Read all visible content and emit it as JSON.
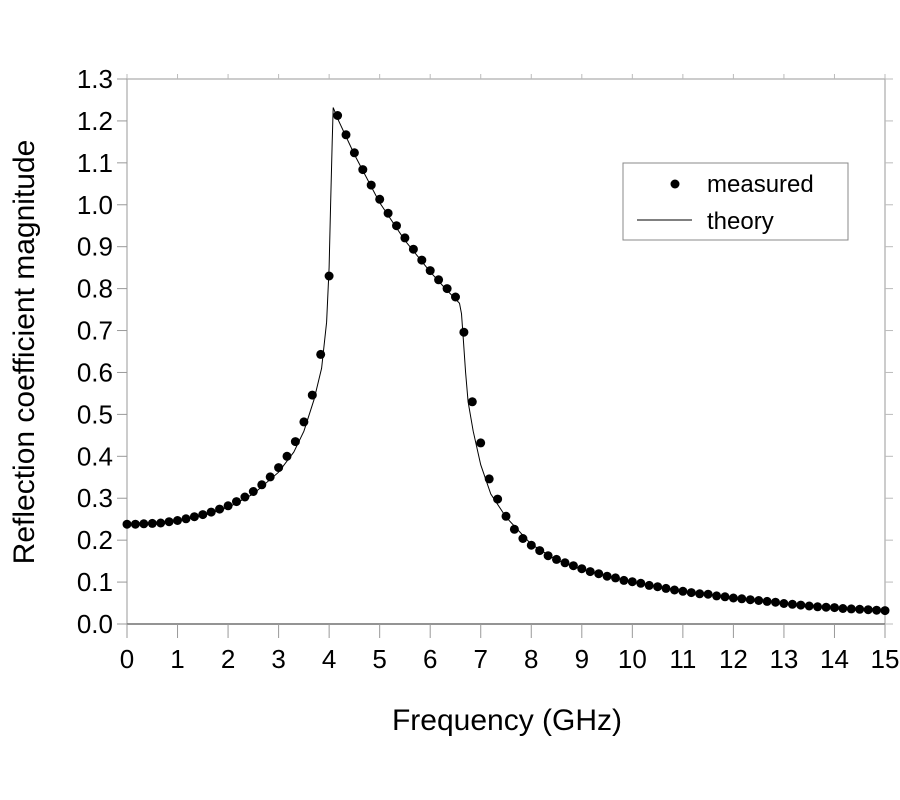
{
  "chart_data": {
    "type": "scatter",
    "title": "",
    "xlabel": "Frequency (GHz)",
    "ylabel": "Reflection coefficient magnitude",
    "xlim": [
      0,
      15
    ],
    "ylim": [
      0,
      1.3
    ],
    "xticks": [
      "0",
      "1",
      "2",
      "3",
      "4",
      "5",
      "6",
      "7",
      "8",
      "9",
      "10",
      "11",
      "12",
      "13",
      "14",
      "15"
    ],
    "yticks": [
      "0.0",
      "0.1",
      "0.2",
      "0.3",
      "0.4",
      "0.5",
      "0.6",
      "0.7",
      "0.8",
      "0.9",
      "1.0",
      "1.1",
      "1.2",
      "1.3"
    ],
    "grid": false,
    "legend_position": "top-right",
    "series": [
      {
        "name": "measured",
        "style": "markers",
        "color": "#000000",
        "x_step": 0.16667,
        "x_start": 0,
        "y": [
          0.238,
          0.238,
          0.239,
          0.24,
          0.241,
          0.244,
          0.247,
          0.251,
          0.256,
          0.261,
          0.267,
          0.274,
          0.282,
          0.292,
          0.303,
          0.316,
          0.332,
          0.351,
          0.373,
          0.4,
          0.435,
          0.482,
          0.546,
          0.643,
          0.83,
          1.213,
          1.167,
          1.124,
          1.084,
          1.047,
          1.013,
          0.98,
          0.95,
          0.921,
          0.894,
          0.868,
          0.843,
          0.821,
          0.8,
          0.78,
          0.696,
          0.53,
          0.432,
          0.346,
          0.298,
          0.257,
          0.226,
          0.204,
          0.188,
          0.175,
          0.163,
          0.154,
          0.146,
          0.139,
          0.132,
          0.125,
          0.12,
          0.114,
          0.11,
          0.104,
          0.101,
          0.097,
          0.092,
          0.089,
          0.085,
          0.081,
          0.078,
          0.075,
          0.072,
          0.071,
          0.067,
          0.065,
          0.062,
          0.06,
          0.058,
          0.056,
          0.054,
          0.052,
          0.049,
          0.047,
          0.045,
          0.043,
          0.041,
          0.04,
          0.039,
          0.037,
          0.036,
          0.035,
          0.034,
          0.033,
          0.032
        ]
      },
      {
        "name": "theory",
        "style": "line",
        "color": "#000000",
        "points": [
          [
            0,
            0.238
          ],
          [
            1,
            0.246
          ],
          [
            1.5,
            0.258
          ],
          [
            2,
            0.278
          ],
          [
            2.5,
            0.31
          ],
          [
            3,
            0.362
          ],
          [
            3.3,
            0.41
          ],
          [
            3.5,
            0.46
          ],
          [
            3.7,
            0.535
          ],
          [
            3.85,
            0.61
          ],
          [
            3.95,
            0.72
          ],
          [
            4.0,
            0.85
          ],
          [
            4.03,
            1.0
          ],
          [
            4.06,
            1.15
          ],
          [
            4.08,
            1.232
          ],
          [
            4.17,
            1.205
          ],
          [
            4.5,
            1.12
          ],
          [
            5.0,
            1.005
          ],
          [
            5.5,
            0.915
          ],
          [
            6.0,
            0.84
          ],
          [
            6.3,
            0.8
          ],
          [
            6.58,
            0.765
          ],
          [
            6.62,
            0.74
          ],
          [
            6.65,
            0.69
          ],
          [
            6.7,
            0.6
          ],
          [
            6.75,
            0.53
          ],
          [
            6.85,
            0.46
          ],
          [
            7.0,
            0.38
          ],
          [
            7.2,
            0.31
          ],
          [
            7.5,
            0.255
          ],
          [
            8.0,
            0.19
          ],
          [
            8.5,
            0.153
          ],
          [
            9,
            0.13
          ],
          [
            10,
            0.1
          ],
          [
            11,
            0.078
          ],
          [
            12,
            0.062
          ],
          [
            13,
            0.049
          ],
          [
            14,
            0.039
          ],
          [
            15,
            0.032
          ]
        ]
      }
    ]
  }
}
